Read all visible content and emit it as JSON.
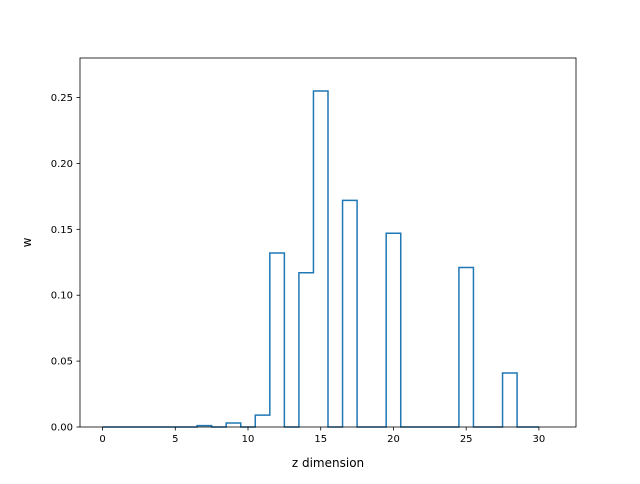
{
  "chart_data": {
    "type": "bar",
    "style": "step-histogram",
    "xlabel": "z dimension",
    "ylabel": "w",
    "xlim": [
      -1.55,
      32.55
    ],
    "ylim": [
      0,
      0.28
    ],
    "xticks": [
      0,
      5,
      10,
      15,
      20,
      25,
      30
    ],
    "xtick_labels": [
      "0",
      "5",
      "10",
      "15",
      "20",
      "25",
      "30"
    ],
    "yticks": [
      0.0,
      0.05,
      0.1,
      0.15,
      0.2,
      0.25
    ],
    "ytick_labels": [
      "0.00",
      "0.05",
      "0.10",
      "0.15",
      "0.20",
      "0.25"
    ],
    "grid": false,
    "color": "#1f77b4",
    "x": [
      0,
      1,
      2,
      3,
      4,
      5,
      6,
      7,
      8,
      9,
      10,
      11,
      12,
      13,
      14,
      15,
      16,
      17,
      18,
      19,
      20,
      21,
      22,
      23,
      24,
      25,
      26,
      27,
      28,
      29,
      30
    ],
    "values": [
      0,
      0,
      0,
      0,
      0,
      0,
      0,
      0.001,
      0,
      0.003,
      0,
      0.009,
      0.132,
      0,
      0.117,
      0.255,
      0,
      0.172,
      0,
      0,
      0.147,
      0,
      0,
      0,
      0,
      0.121,
      0,
      0,
      0.041,
      0,
      0
    ]
  }
}
